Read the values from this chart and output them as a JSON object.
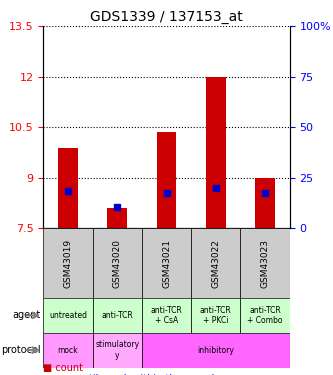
{
  "title": "GDS1339 / 137153_at",
  "samples": [
    "GSM43019",
    "GSM43020",
    "GSM43021",
    "GSM43022",
    "GSM43023"
  ],
  "bar_bottoms": [
    7.5,
    7.5,
    7.5,
    7.5,
    7.5
  ],
  "bar_tops": [
    9.9,
    8.1,
    10.35,
    12.0,
    9.0
  ],
  "percentile_values": [
    8.6,
    8.15,
    8.55,
    8.7,
    8.55
  ],
  "ylim": [
    7.5,
    13.5
  ],
  "yticks": [
    7.5,
    9.0,
    10.5,
    12.0,
    13.5
  ],
  "ytick_labels": [
    "7.5",
    "9",
    "10.5",
    "12",
    "13.5"
  ],
  "y2ticks": [
    7.5,
    9.0,
    10.5,
    12.0,
    13.5
  ],
  "y2tick_labels": [
    "0",
    "25",
    "50",
    "75",
    "100%"
  ],
  "bar_color": "#cc0000",
  "percentile_color": "#0000cc",
  "agent_labels": [
    "untreated",
    "anti-TCR",
    "anti-TCR\n+ CsA",
    "anti-TCR\n+ PKCi",
    "anti-TCR\n+ Combo"
  ],
  "protocol_labels": [
    "mock",
    "stimulatory",
    "inhibitory",
    "inhibitory",
    "inhibitory"
  ],
  "agent_bg": "#ccffcc",
  "protocol_mock_bg": "#ff99ff",
  "protocol_stim_bg": "#ffaaff",
  "protocol_inhib_bg": "#ff66ff",
  "sample_bg": "#cccccc",
  "legend_count_color": "#cc0000",
  "legend_pct_color": "#0000cc"
}
